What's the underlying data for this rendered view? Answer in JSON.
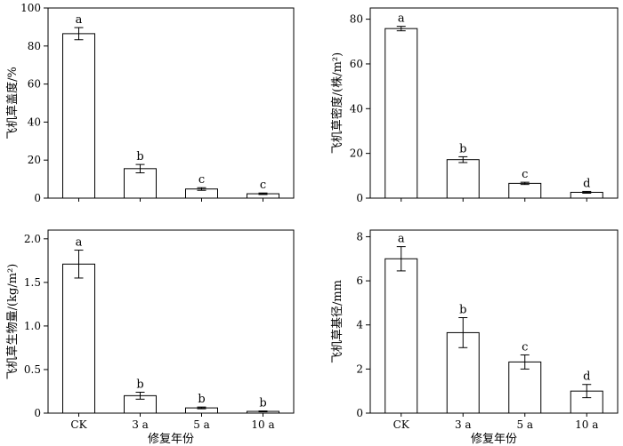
{
  "chart_data": [
    {
      "type": "bar",
      "categories": [
        "CK",
        "3 a",
        "5 a",
        "10 a"
      ],
      "values": [
        86.5,
        15.5,
        4.8,
        2.3
      ],
      "errors": [
        3.2,
        2.2,
        0.7,
        0.4
      ],
      "letters": [
        "a",
        "b",
        "c",
        "c"
      ],
      "ylabel": "飞机草盖度/%",
      "xlabel": "",
      "ylim": [
        0,
        100
      ],
      "yticks": [
        "0",
        "20",
        "40",
        "60",
        "80",
        "100"
      ]
    },
    {
      "type": "bar",
      "categories": [
        "CK",
        "3 a",
        "5 a",
        "10 a"
      ],
      "values": [
        75.8,
        17.2,
        6.6,
        2.6
      ],
      "errors": [
        1.0,
        1.3,
        0.5,
        0.4
      ],
      "letters": [
        "a",
        "b",
        "c",
        "d"
      ],
      "ylabel": "飞机草密度/(株/m²)",
      "xlabel": "",
      "ylim": [
        0,
        85
      ],
      "yticks": [
        "0",
        "20",
        "40",
        "60",
        "80"
      ]
    },
    {
      "type": "bar",
      "categories": [
        "CK",
        "3 a",
        "5 a",
        "10 a"
      ],
      "values": [
        1.71,
        0.2,
        0.06,
        0.02
      ],
      "errors": [
        0.16,
        0.04,
        0.01,
        0.005
      ],
      "letters": [
        "a",
        "b",
        "b",
        "b"
      ],
      "ylabel": "飞机草生物量/(kg/m²)",
      "xlabel": "修复年份",
      "ylim": [
        0,
        2.1
      ],
      "yticks": [
        "0",
        "0.5",
        "1.0",
        "1.5",
        "2.0"
      ]
    },
    {
      "type": "bar",
      "categories": [
        "CK",
        "3 a",
        "5 a",
        "10 a"
      ],
      "values": [
        7.0,
        3.65,
        2.32,
        1.0
      ],
      "errors": [
        0.55,
        0.68,
        0.32,
        0.3
      ],
      "letters": [
        "a",
        "b",
        "c",
        "d"
      ],
      "ylabel": "飞机草基径/mm",
      "xlabel": "修复年份",
      "ylim": [
        0,
        8.3
      ],
      "yticks": [
        "0",
        "2",
        "4",
        "6",
        "8"
      ]
    }
  ],
  "colors": {
    "bar_fill": "#ffffff",
    "stroke": "#000000"
  }
}
